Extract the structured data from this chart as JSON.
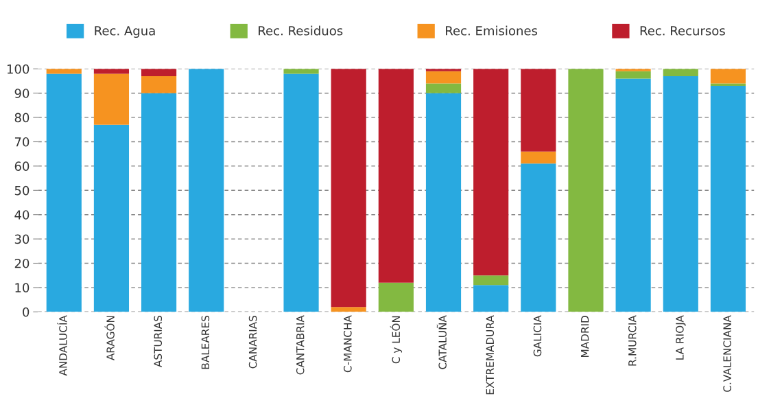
{
  "chart_data": {
    "type": "bar",
    "stacked": true,
    "categories": [
      "ANDALUCÍA",
      "ARAGÓN",
      "ASTURIAS",
      "BALEARES",
      "CANARIAS",
      "CANTABRIA",
      "C-MANCHA",
      "C y LEÓN",
      "CATALUÑA",
      "EXTREMADURA",
      "GALICIA",
      "MADRID",
      "R.MURCIA",
      "LA RIOJA",
      "C.VALENCIANA"
    ],
    "series": [
      {
        "name": "Rec. Agua",
        "color": "#29a9e0",
        "values": [
          98,
          77,
          90,
          100,
          0,
          98,
          0,
          0,
          90,
          11,
          61,
          0,
          96,
          97,
          93
        ]
      },
      {
        "name": "Rec. Residuos",
        "color": "#83b941",
        "values": [
          0,
          0,
          0,
          0,
          0,
          2,
          0,
          12,
          4,
          4,
          0,
          100,
          3,
          3,
          1
        ]
      },
      {
        "name": "Rec. Emisiones",
        "color": "#f69320",
        "values": [
          2,
          21,
          7,
          0,
          0,
          0,
          2,
          0,
          5,
          0,
          5,
          0,
          1,
          0,
          6
        ]
      },
      {
        "name": "Rec. Recursos",
        "color": "#be1e2d",
        "values": [
          0,
          2,
          3,
          0,
          0,
          0,
          98,
          88,
          1,
          85,
          34,
          0,
          0,
          0,
          0
        ]
      }
    ],
    "ylim": [
      0,
      100
    ],
    "yticks": [
      0,
      10,
      20,
      30,
      40,
      50,
      60,
      70,
      80,
      90,
      100
    ],
    "grid": "y",
    "legend": "top"
  }
}
